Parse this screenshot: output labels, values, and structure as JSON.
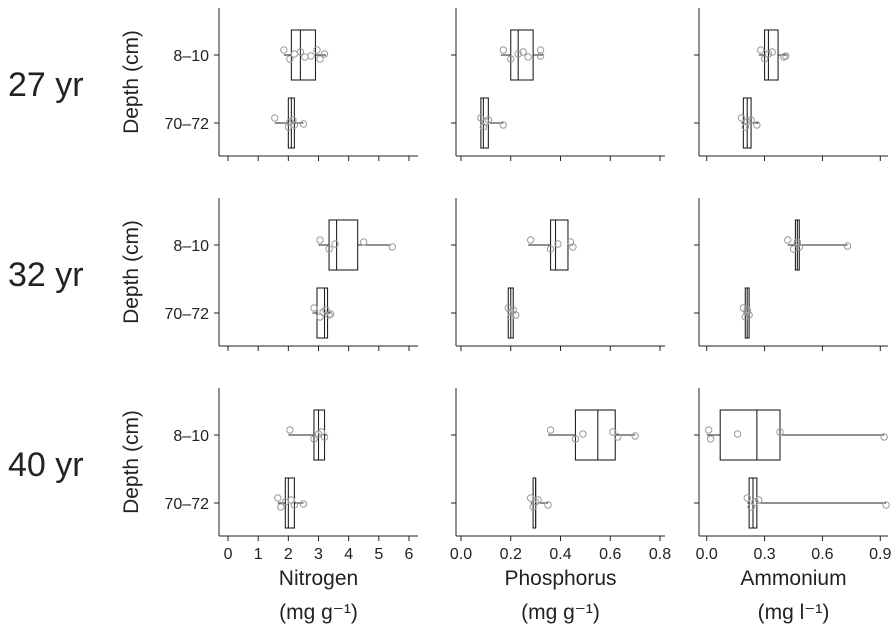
{
  "chart_data": {
    "type": "boxplot",
    "ylabel": "Depth (cm)",
    "depth_categories": [
      "8–10",
      "70–72"
    ],
    "rows": [
      "27 yr",
      "32 yr",
      "40 yr"
    ],
    "columns": [
      {
        "name": "Nitrogen",
        "unit": "(mg g⁻¹)",
        "xlim": [
          -0.3,
          6.3
        ],
        "ticks": [
          0,
          1,
          2,
          3,
          4,
          5,
          6
        ],
        "tick_labels": [
          "0",
          "1",
          "2",
          "3",
          "4",
          "5",
          "6"
        ]
      },
      {
        "name": "Phosphorus",
        "unit": "(mg g⁻¹)",
        "xlim": [
          -0.02,
          0.82
        ],
        "ticks": [
          0.0,
          0.2,
          0.4,
          0.6,
          0.8
        ],
        "tick_labels": [
          "0.0",
          "0.2",
          "0.4",
          "0.6",
          "0.8"
        ]
      },
      {
        "name": "Ammonium",
        "unit": "(mg l⁻¹)",
        "xlim": [
          -0.04,
          0.94
        ],
        "ticks": [
          0.0,
          0.3,
          0.6,
          0.9
        ],
        "tick_labels": [
          "0.0",
          "0.3",
          "0.6",
          "0.9"
        ]
      }
    ],
    "panels": [
      {
        "row": "27 yr",
        "column": "Nitrogen",
        "boxes": [
          {
            "depth": "8–10",
            "min": 1.85,
            "q1": 2.1,
            "median": 2.4,
            "q3": 2.9,
            "max": 3.25,
            "points": [
              1.85,
              2.05,
              2.2,
              2.4,
              2.55,
              2.75,
              2.95,
              3.05,
              3.2
            ]
          },
          {
            "depth": "70–72",
            "min": 1.55,
            "q1": 2.0,
            "median": 2.1,
            "q3": 2.2,
            "max": 2.5,
            "points": [
              1.55,
              2.0,
              2.05,
              2.15,
              2.2,
              2.5
            ]
          }
        ]
      },
      {
        "row": "27 yr",
        "column": "Phosphorus",
        "boxes": [
          {
            "depth": "8–10",
            "min": 0.16,
            "q1": 0.2,
            "median": 0.23,
            "q3": 0.29,
            "max": 0.33,
            "points": [
              0.17,
              0.2,
              0.23,
              0.25,
              0.27,
              0.32,
              0.32
            ]
          },
          {
            "depth": "70–72",
            "min": 0.08,
            "q1": 0.08,
            "median": 0.09,
            "q3": 0.11,
            "max": 0.17,
            "points": [
              0.08,
              0.09,
              0.1,
              0.11,
              0.17
            ]
          }
        ]
      },
      {
        "row": "27 yr",
        "column": "Ammonium",
        "boxes": [
          {
            "depth": "8–10",
            "min": 0.27,
            "q1": 0.3,
            "median": 0.32,
            "q3": 0.37,
            "max": 0.42,
            "points": [
              0.28,
              0.3,
              0.32,
              0.34,
              0.4,
              0.41
            ]
          },
          {
            "depth": "70–72",
            "min": 0.18,
            "q1": 0.19,
            "median": 0.21,
            "q3": 0.23,
            "max": 0.27,
            "points": [
              0.18,
              0.2,
              0.21,
              0.23,
              0.26
            ]
          }
        ]
      },
      {
        "row": "32 yr",
        "column": "Nitrogen",
        "boxes": [
          {
            "depth": "8–10",
            "min": 3.0,
            "q1": 3.35,
            "median": 3.6,
            "q3": 4.3,
            "max": 5.4,
            "points": [
              3.05,
              3.35,
              3.55,
              4.5,
              5.45
            ]
          },
          {
            "depth": "70–72",
            "min": 2.8,
            "q1": 2.95,
            "median": 3.2,
            "q3": 3.3,
            "max": 3.4,
            "points": [
              2.85,
              3.05,
              3.15,
              3.25,
              3.35,
              3.4
            ]
          }
        ]
      },
      {
        "row": "32 yr",
        "column": "Phosphorus",
        "boxes": [
          {
            "depth": "8–10",
            "min": 0.27,
            "q1": 0.36,
            "median": 0.38,
            "q3": 0.43,
            "max": 0.45,
            "points": [
              0.28,
              0.36,
              0.39,
              0.44,
              0.45
            ]
          },
          {
            "depth": "70–72",
            "min": 0.19,
            "q1": 0.19,
            "median": 0.2,
            "q3": 0.21,
            "max": 0.22,
            "points": [
              0.19,
              0.2,
              0.2,
              0.21,
              0.22
            ]
          }
        ]
      },
      {
        "row": "32 yr",
        "column": "Ammonium",
        "boxes": [
          {
            "depth": "8–10",
            "min": 0.42,
            "q1": 0.46,
            "median": 0.47,
            "q3": 0.48,
            "max": 0.73,
            "points": [
              0.42,
              0.45,
              0.47,
              0.47,
              0.48,
              0.73
            ]
          },
          {
            "depth": "70–72",
            "min": 0.19,
            "q1": 0.2,
            "median": 0.21,
            "q3": 0.22,
            "max": 0.22,
            "points": [
              0.19,
              0.2,
              0.21,
              0.21,
              0.22
            ]
          }
        ]
      },
      {
        "row": "40 yr",
        "column": "Nitrogen",
        "boxes": [
          {
            "depth": "8–10",
            "min": 2.0,
            "q1": 2.85,
            "median": 3.0,
            "q3": 3.2,
            "max": 3.3,
            "points": [
              2.05,
              2.85,
              3.0,
              3.1,
              3.2
            ]
          },
          {
            "depth": "70–72",
            "min": 1.65,
            "q1": 1.9,
            "median": 2.0,
            "q3": 2.2,
            "max": 2.5,
            "points": [
              1.65,
              1.75,
              1.9,
              2.1,
              2.2,
              2.5
            ]
          }
        ]
      },
      {
        "row": "40 yr",
        "column": "Phosphorus",
        "boxes": [
          {
            "depth": "8–10",
            "min": 0.35,
            "q1": 0.46,
            "median": 0.55,
            "q3": 0.62,
            "max": 0.7,
            "points": [
              0.36,
              0.46,
              0.49,
              0.61,
              0.63,
              0.7
            ]
          },
          {
            "depth": "70–72",
            "min": 0.28,
            "q1": 0.29,
            "median": 0.3,
            "q3": 0.3,
            "max": 0.35,
            "points": [
              0.28,
              0.29,
              0.3,
              0.31,
              0.35
            ]
          }
        ]
      },
      {
        "row": "40 yr",
        "column": "Ammonium",
        "boxes": [
          {
            "depth": "8–10",
            "min": 0.0,
            "q1": 0.07,
            "median": 0.26,
            "q3": 0.38,
            "max": 0.92,
            "points": [
              0.01,
              0.02,
              0.16,
              0.38,
              0.92
            ]
          },
          {
            "depth": "70–72",
            "min": 0.21,
            "q1": 0.22,
            "median": 0.24,
            "q3": 0.26,
            "max": 0.93,
            "points": [
              0.21,
              0.23,
              0.25,
              0.27,
              0.93
            ]
          }
        ]
      }
    ],
    "colors": {
      "box_stroke": "#222222",
      "point_stroke": "#9a9a9a",
      "axis": "#222222"
    },
    "grid": false,
    "legend": "none"
  }
}
